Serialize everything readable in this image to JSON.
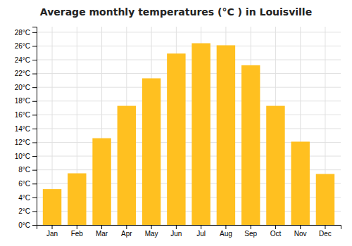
{
  "chart_data": {
    "type": "bar",
    "title": "Average monthly temperatures (°C ) in Louisville",
    "categories": [
      "Jan",
      "Feb",
      "Mar",
      "Apr",
      "May",
      "Jun",
      "Jul",
      "Aug",
      "Sep",
      "Oct",
      "Nov",
      "Dec"
    ],
    "values": [
      5.2,
      7.5,
      12.6,
      17.3,
      21.3,
      24.9,
      26.4,
      26.1,
      23.2,
      17.3,
      12.1,
      7.4
    ],
    "color": "#FFC020",
    "ylim": [
      0,
      28.8
    ],
    "yticks": [
      {
        "value": 0,
        "label": "0°C"
      },
      {
        "value": 2,
        "label": "2°C"
      },
      {
        "value": 4,
        "label": "4°C"
      },
      {
        "value": 6,
        "label": "6°C"
      },
      {
        "value": 8,
        "label": "8°C"
      },
      {
        "value": 10,
        "label": "10°C"
      },
      {
        "value": 12,
        "label": "12°C"
      },
      {
        "value": 14,
        "label": "14°C"
      },
      {
        "value": 16,
        "label": "16°C"
      },
      {
        "value": 18,
        "label": "18°C"
      },
      {
        "value": 20,
        "label": "20°C"
      },
      {
        "value": 22,
        "label": "22°C"
      },
      {
        "value": 24,
        "label": "24°C"
      },
      {
        "value": 26,
        "label": "26°C"
      },
      {
        "value": 28,
        "label": "28°C"
      }
    ],
    "grid": true
  }
}
